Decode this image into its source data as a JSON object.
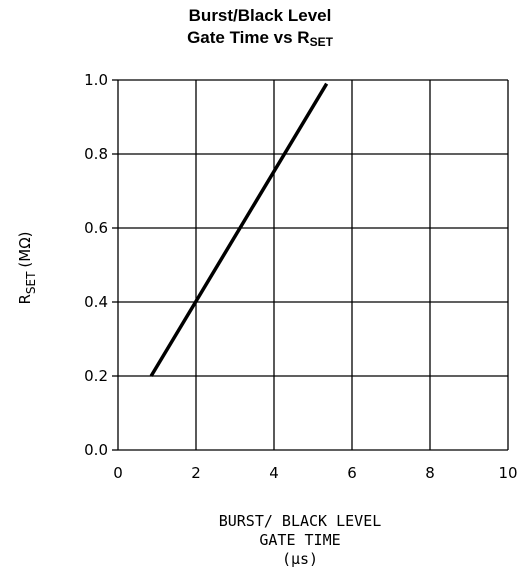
{
  "chart_data": {
    "type": "line",
    "title_line1": "Burst/Black Level",
    "title_line2_main": "Gate Time vs R",
    "title_line2_sub": "SET",
    "ylabel_main": "R",
    "ylabel_sub": "SET",
    "ylabel_unit": "(MΩ)",
    "xlabel_lines": [
      "BURST/ BLACK LEVEL",
      "GATE TIME",
      "(µs)"
    ],
    "xlim": [
      0,
      10
    ],
    "ylim": [
      0,
      1.0
    ],
    "x_ticks": [
      "0",
      "2",
      "4",
      "6",
      "8",
      "10"
    ],
    "y_ticks": [
      "0.0",
      "0.2",
      "0.4",
      "0.6",
      "0.8",
      "1.0"
    ],
    "grid": true,
    "series": [
      {
        "color": "#000000",
        "points": [
          [
            0.85,
            0.2
          ],
          [
            5.35,
            0.99
          ]
        ]
      }
    ]
  }
}
